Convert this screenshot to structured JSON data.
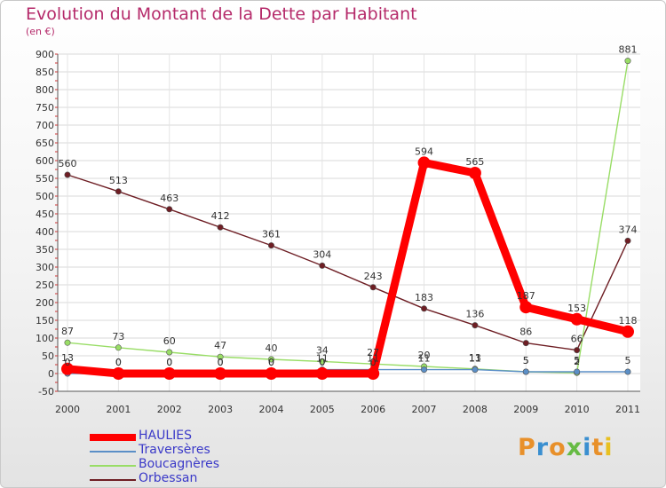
{
  "chart_data": {
    "type": "line",
    "title": "Evolution du Montant de la Dette par Habitant",
    "subtitle": "(en €)",
    "categories": [
      "2000",
      "2001",
      "2002",
      "2003",
      "2004",
      "2005",
      "2006",
      "2007",
      "2008",
      "2009",
      "2010",
      "2011"
    ],
    "ylim": [
      -50,
      900
    ],
    "yticks": [
      -50,
      0,
      50,
      100,
      150,
      200,
      250,
      300,
      350,
      400,
      450,
      500,
      550,
      600,
      650,
      700,
      750,
      800,
      850,
      900
    ],
    "grid": true,
    "series": [
      {
        "name": "HAULIES",
        "color": "#ff0000",
        "values": [
          13,
          0,
          0,
          0,
          0,
          0,
          0,
          594,
          565,
          187,
          153,
          118
        ]
      },
      {
        "name": "Traversères",
        "color": "#5b8fc7",
        "values": [
          0,
          0,
          0,
          0,
          0,
          11,
          11,
          11,
          11,
          5,
          5,
          5
        ]
      },
      {
        "name": "Boucagnères",
        "color": "#99dd66",
        "values": [
          87,
          73,
          60,
          47,
          40,
          34,
          27,
          20,
          13,
          5,
          2,
          881
        ]
      },
      {
        "name": "Orbessan",
        "color": "#6e1e24",
        "values": [
          560,
          513,
          463,
          412,
          361,
          304,
          243,
          183,
          136,
          86,
          66,
          374
        ]
      }
    ],
    "data_labels": [
      [
        {
          "i": 0,
          "text": "13"
        },
        {
          "i": 1,
          "text": "0"
        },
        {
          "i": 2,
          "text": "0"
        },
        {
          "i": 3,
          "text": "0"
        },
        {
          "i": 4,
          "text": "0"
        },
        {
          "i": 5,
          "text": "0"
        },
        {
          "i": 6,
          "text": "0"
        },
        {
          "i": 7,
          "text": "594"
        },
        {
          "i": 8,
          "text": "565"
        },
        {
          "i": 9,
          "text": "187"
        },
        {
          "i": 10,
          "text": "153"
        },
        {
          "i": 11,
          "text": "118"
        }
      ],
      [
        {
          "i": 0,
          "text": "0"
        },
        {
          "i": 1,
          "text": "0"
        },
        {
          "i": 2,
          "text": "0"
        },
        {
          "i": 3,
          "text": "0"
        },
        {
          "i": 4,
          "text": "0"
        },
        {
          "i": 5,
          "text": "11"
        },
        {
          "i": 6,
          "text": "11"
        },
        {
          "i": 7,
          "text": "11"
        },
        {
          "i": 8,
          "text": "11"
        },
        {
          "i": 9,
          "text": "5"
        },
        {
          "i": 10,
          "text": "5"
        },
        {
          "i": 11,
          "text": "5"
        }
      ],
      [
        {
          "i": 0,
          "text": "87"
        },
        {
          "i": 1,
          "text": "73"
        },
        {
          "i": 2,
          "text": "60"
        },
        {
          "i": 3,
          "text": "47"
        },
        {
          "i": 4,
          "text": "40"
        },
        {
          "i": 5,
          "text": "34"
        },
        {
          "i": 6,
          "text": "27"
        },
        {
          "i": 7,
          "text": "20"
        },
        {
          "i": 8,
          "text": "13"
        },
        {
          "i": 9,
          "text": "5"
        },
        {
          "i": 10,
          "text": "2"
        },
        {
          "i": 11,
          "text": "881"
        }
      ],
      [
        {
          "i": 0,
          "text": "560"
        },
        {
          "i": 1,
          "text": "513"
        },
        {
          "i": 2,
          "text": "463"
        },
        {
          "i": 3,
          "text": "412"
        },
        {
          "i": 4,
          "text": "361"
        },
        {
          "i": 5,
          "text": "304"
        },
        {
          "i": 6,
          "text": "243"
        },
        {
          "i": 7,
          "text": "183"
        },
        {
          "i": 8,
          "text": "136"
        },
        {
          "i": 9,
          "text": "86"
        },
        {
          "i": 10,
          "text": "66"
        },
        {
          "i": 11,
          "text": "374"
        }
      ]
    ]
  },
  "branding": {
    "logo_text": "Proxiti",
    "logo_colors": [
      "#e8902a",
      "#3a8fd0",
      "#e8902a",
      "#66bb44",
      "#3a8fd0",
      "#e8902a",
      "#e8c020"
    ]
  }
}
